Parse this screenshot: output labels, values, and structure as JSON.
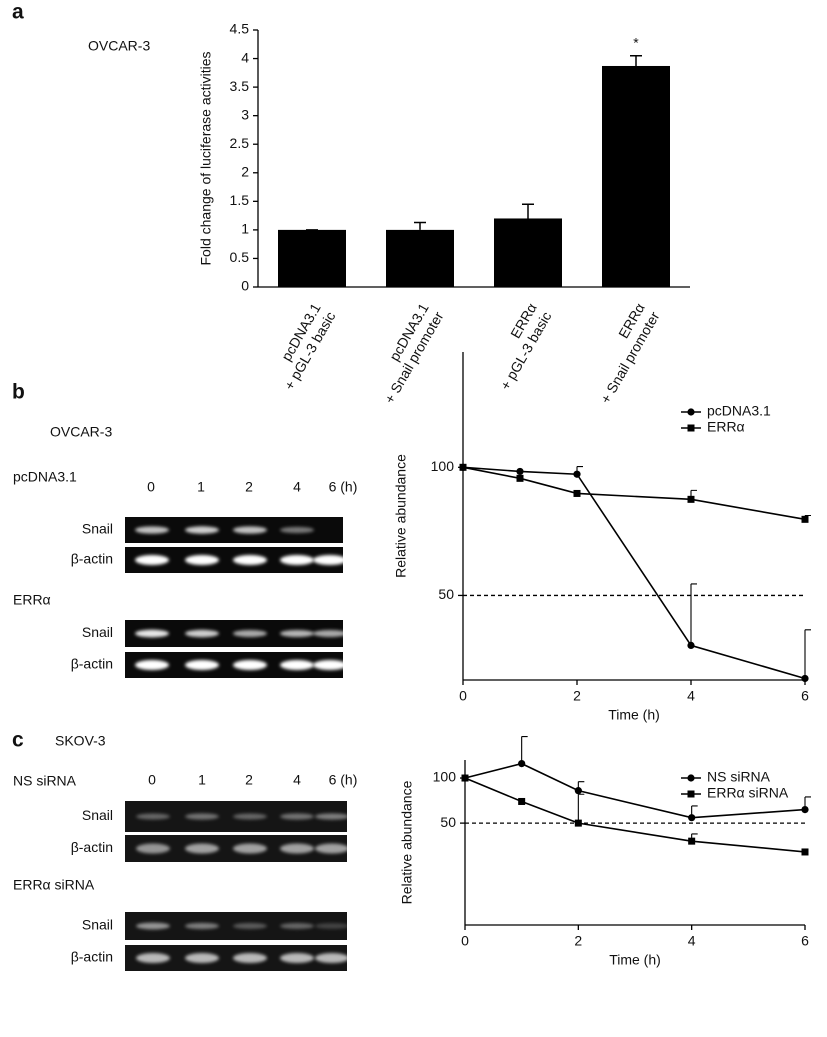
{
  "chart_data": [
    {
      "type": "bar",
      "ylabel": "Fold change of luciferase activities",
      "categories": [
        [
          "pcDNA3.1",
          "+ pGL-3 basic"
        ],
        [
          "pcDNA3.1",
          "+ Snail promoter"
        ],
        [
          "ERRα",
          "+ pGL-3 basic"
        ],
        [
          "ERRα",
          "+ Snail promoter"
        ]
      ],
      "values": [
        1,
        1,
        1.2,
        3.87
      ],
      "errors": [
        0,
        0.13,
        0.25,
        0.18
      ],
      "significance": [
        null,
        null,
        null,
        "*"
      ],
      "color": "#000000",
      "ylim": [
        0,
        4.5
      ],
      "yticks": [
        0,
        0.5,
        1,
        1.5,
        2,
        2.5,
        3,
        3.5,
        4,
        4.5
      ]
    },
    {
      "type": "line",
      "xlabel": "Time (h)",
      "ylabel": "Relative abundance",
      "x": [
        0,
        1,
        2,
        4,
        6
      ],
      "xlim": [
        0,
        6
      ],
      "xticks": [
        0,
        2,
        4,
        6
      ],
      "ylim": [
        17,
        145
      ],
      "yticks": [
        50,
        100
      ],
      "reference_line": 50,
      "legend": "upper right",
      "series": [
        {
          "name": "pcDNA3.1",
          "color": "#000000",
          "marker": "circle",
          "values": [
            100,
            98.4,
            97.3,
            30.5,
            17.6
          ],
          "errors": [
            null,
            null,
            3,
            24,
            19
          ]
        },
        {
          "name": "ERRα",
          "color": "#000000",
          "marker": "square",
          "values": [
            100,
            95.7,
            89.8,
            87.5,
            79.7
          ],
          "errors": [
            null,
            null,
            null,
            3.5,
            1.5
          ]
        }
      ]
    },
    {
      "type": "line",
      "xlabel": "Time (h)",
      "ylabel": "Relative abundance",
      "x": [
        0,
        1,
        2,
        4,
        6
      ],
      "xlim": [
        0,
        6
      ],
      "xticks": [
        0,
        2,
        4,
        6
      ],
      "ylim": [
        -63,
        120
      ],
      "yticks": [
        50,
        100
      ],
      "reference_line": 50,
      "legend": "upper right",
      "series": [
        {
          "name": "NS siRNA",
          "color": "#000000",
          "marker": "circle",
          "values": [
            100,
            116,
            86,
            56,
            65
          ],
          "errors": [
            null,
            30,
            10,
            13,
            14
          ]
        },
        {
          "name": "ERRα siRNA",
          "color": "#000000",
          "marker": "square",
          "values": [
            100,
            74,
            50,
            30,
            18
          ],
          "errors": [
            null,
            null,
            32,
            8,
            null
          ]
        }
      ]
    }
  ],
  "panels": [
    {
      "letter": "a",
      "cell_line": "OVCAR-3"
    },
    {
      "letter": "b",
      "cell_line": "OVCAR-3"
    },
    {
      "letter": "c",
      "cell_line": "SKOV-3"
    }
  ],
  "gels": [
    {
      "lanes": [
        "0",
        "1",
        "2",
        "4",
        "6 (h)"
      ],
      "blots": [
        {
          "label": "pcDNA3.1",
          "rows": [
            "Snail",
            "β-actin"
          ]
        },
        {
          "label": "ERRα",
          "rows": [
            "Snail",
            "β-actin"
          ]
        }
      ]
    },
    {
      "lanes": [
        "0",
        "1",
        "2",
        "4",
        "6 (h)"
      ],
      "blots": [
        {
          "label": "NS siRNA",
          "rows": [
            "Snail",
            "β-actin"
          ]
        },
        {
          "label": "ERRα siRNA",
          "rows": [
            "Snail",
            "β-actin"
          ]
        }
      ]
    }
  ]
}
